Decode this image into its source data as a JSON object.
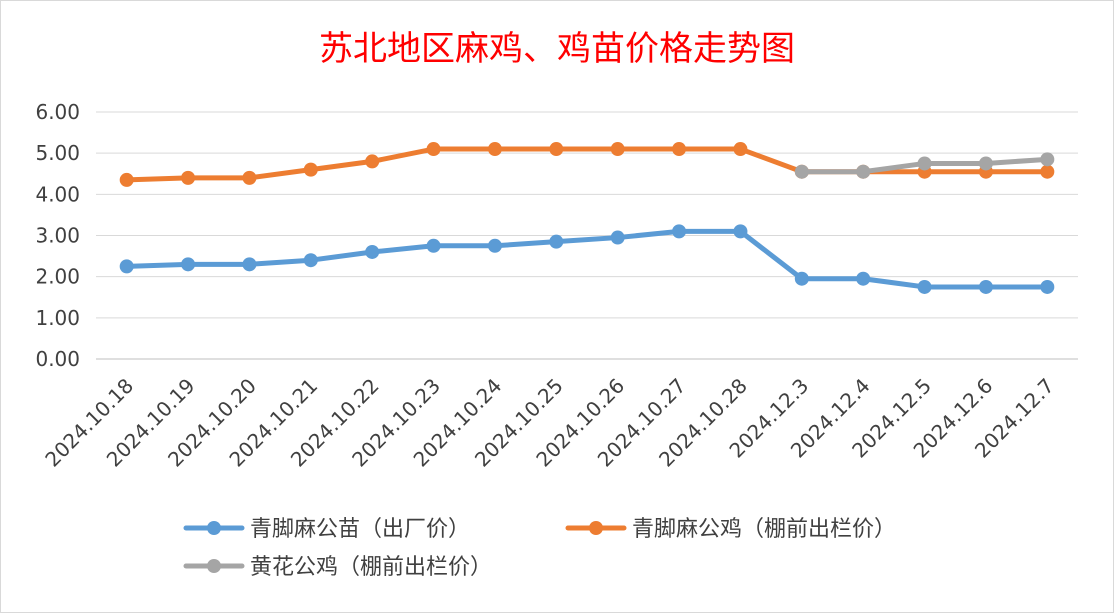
{
  "chart_data": {
    "type": "line",
    "title": "苏北地区麻鸡、鸡苗价格走势图",
    "title_color": "#ff0000",
    "categories": [
      "2024.10.18",
      "2024.10.19",
      "2024.10.20",
      "2024.10.21",
      "2024.10.22",
      "2024.10.23",
      "2024.10.24",
      "2024.10.25",
      "2024.10.26",
      "2024.10.27",
      "2024.10.28",
      "2024.12.3",
      "2024.12.4",
      "2024.12.5",
      "2024.12.6",
      "2024.12.7"
    ],
    "ylim": [
      0,
      6
    ],
    "yticks": [
      "0.00",
      "1.00",
      "2.00",
      "3.00",
      "4.00",
      "5.00",
      "6.00"
    ],
    "grid": true,
    "legend": "bottom",
    "series": [
      {
        "name": "青脚麻公苗（出厂价）",
        "color": "#5b9bd5",
        "values": [
          2.25,
          2.3,
          2.3,
          2.4,
          2.6,
          2.75,
          2.75,
          2.85,
          2.95,
          3.1,
          3.1,
          1.95,
          1.95,
          1.75,
          1.75,
          1.75
        ]
      },
      {
        "name": "青脚麻公鸡（棚前出栏价）",
        "color": "#ed7d31",
        "values": [
          4.35,
          4.4,
          4.4,
          4.6,
          4.8,
          5.1,
          5.1,
          5.1,
          5.1,
          5.1,
          5.1,
          4.55,
          4.55,
          4.55,
          4.55,
          4.55
        ]
      },
      {
        "name": "黄花公鸡（棚前出栏价）",
        "color": "#a5a5a5",
        "values": [
          null,
          null,
          null,
          null,
          null,
          null,
          null,
          null,
          null,
          null,
          null,
          4.55,
          4.55,
          4.75,
          4.75,
          4.85
        ]
      }
    ]
  }
}
